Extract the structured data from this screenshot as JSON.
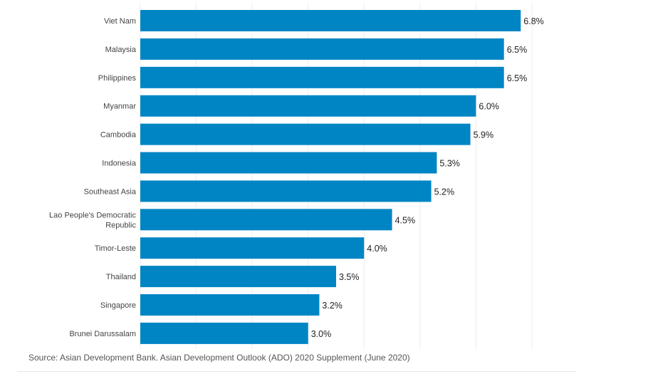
{
  "chart_data": {
    "type": "bar",
    "orientation": "horizontal",
    "categories": [
      "Viet Nam",
      "Malaysia",
      "Philippines",
      "Myanmar",
      "Cambodia",
      "Indonesia",
      "Southeast Asia",
      "Lao People's Democratic Republic",
      "Timor-Leste",
      "Thailand",
      "Singapore",
      "Brunei Darussalam"
    ],
    "values": [
      6.8,
      6.5,
      6.5,
      6.0,
      5.9,
      5.3,
      5.2,
      4.5,
      4.0,
      3.5,
      3.2,
      3.0
    ],
    "value_labels": [
      "6.8%",
      "6.5%",
      "6.5%",
      "6.0%",
      "5.9%",
      "5.3%",
      "5.2%",
      "4.5%",
      "4.0%",
      "3.5%",
      "3.2%",
      "3.0%"
    ],
    "xlim": [
      0,
      7
    ],
    "grid": true,
    "bar_color": "#0085c4",
    "grid_color": "#ececec"
  },
  "source": "Source: Asian Development Bank. Asian Development Outlook (ADO) 2020 Supplement (June 2020)"
}
